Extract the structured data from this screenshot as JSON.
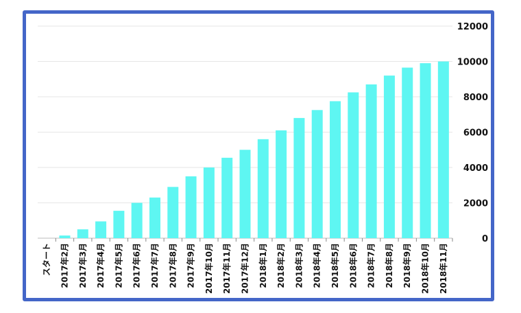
{
  "chart_data": {
    "type": "bar",
    "categories": [
      "スタート",
      "2017年2月",
      "2017年3月",
      "2017年4月",
      "2017年5月",
      "2017年6月",
      "2017年7月",
      "2017年8月",
      "2017年9月",
      "2017年10月",
      "2017年11月",
      "2017年12月",
      "2018年1月",
      "2018年2月",
      "2018年3月",
      "2018年4月",
      "2018年5月",
      "2018年6月",
      "2018年7月",
      "2018年8月",
      "2018年9月",
      "2018年10月",
      "2018年11月"
    ],
    "values": [
      0,
      150,
      500,
      950,
      1550,
      2000,
      2300,
      2900,
      3500,
      4000,
      4550,
      5000,
      5600,
      6100,
      6800,
      7250,
      7750,
      8250,
      8700,
      9200,
      9650,
      9900,
      10000
    ],
    "yticks": [
      "0",
      "2000",
      "4000",
      "6000",
      "8000",
      "10000",
      "12000"
    ],
    "ylim": [
      0,
      12000
    ],
    "y_axis_side": "right",
    "grid": true,
    "title": "",
    "xlabel": "",
    "ylabel": "",
    "colors": {
      "bar": "#5ef6f2",
      "frame": "#4466c8",
      "grid": "#e6e6e6"
    }
  }
}
